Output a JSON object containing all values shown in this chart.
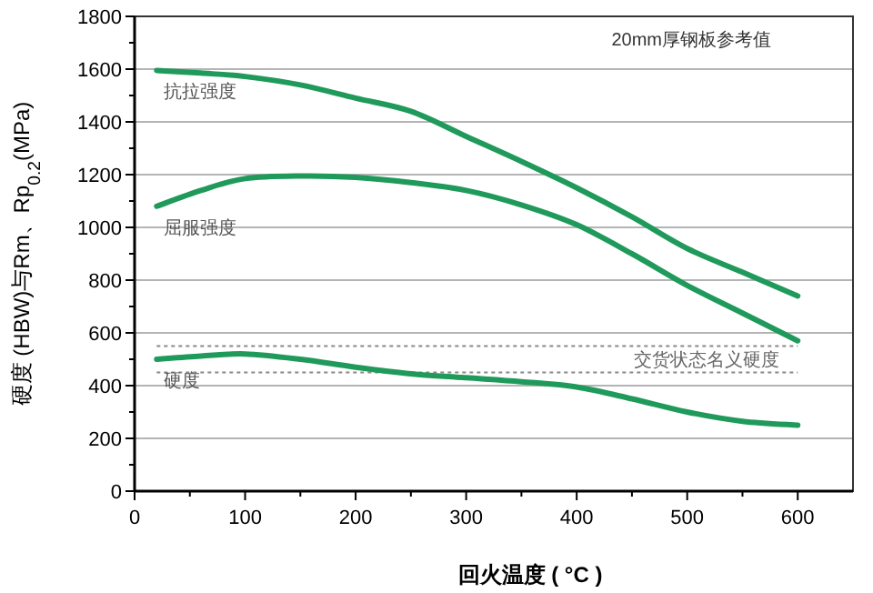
{
  "chart_data": {
    "type": "line",
    "xlabel": "回火温度 ( °C )",
    "ylabel": "硬度 (HBW)与Rm、Rp$_{0.2}$(MPa)",
    "x": [
      20,
      60,
      100,
      150,
      200,
      250,
      300,
      350,
      400,
      450,
      500,
      550,
      600
    ],
    "series": [
      {
        "name": "抗拉强度",
        "color": "#1f9a5b",
        "values": [
          1595,
          1585,
          1572,
          1540,
          1490,
          1440,
          1345,
          1250,
          1150,
          1040,
          920,
          830,
          740
        ]
      },
      {
        "name": "屈服强度",
        "color": "#1f9a5b",
        "values": [
          1080,
          1140,
          1185,
          1195,
          1190,
          1170,
          1140,
          1085,
          1010,
          900,
          780,
          675,
          570
        ]
      },
      {
        "name": "硬度",
        "color": "#1f9a5b",
        "values": [
          500,
          512,
          520,
          500,
          470,
          445,
          430,
          415,
          395,
          350,
          300,
          265,
          250
        ]
      }
    ],
    "xlim": [
      0,
      650
    ],
    "ylim": [
      0,
      1800
    ],
    "xticks": [
      0,
      {
        "value": 50,
        "label": null
      },
      100,
      {
        "value": 150,
        "label": null
      },
      200,
      {
        "value": 250,
        "label": null
      },
      300,
      {
        "value": 350,
        "label": null
      },
      400,
      {
        "value": 450,
        "label": null
      },
      500,
      {
        "value": 550,
        "label": null
      },
      600
    ],
    "yticks": [
      0,
      {
        "value": 100,
        "label": null
      },
      200,
      {
        "value": 300,
        "label": null
      },
      400,
      {
        "value": 500,
        "label": null
      },
      600,
      {
        "value": 700,
        "label": null
      },
      800,
      {
        "value": 900,
        "label": null
      },
      1000,
      {
        "value": 1100,
        "label": null
      },
      1200,
      {
        "value": 1300,
        "label": null
      },
      1400,
      {
        "value": 1500,
        "label": null
      },
      1600,
      {
        "value": 1700,
        "label": null
      },
      1800
    ],
    "grid": "y",
    "line_style": "solid",
    "marker": "none",
    "legend": false,
    "ref_lines": [
      {
        "axis": "y",
        "value": 550,
        "color": "#888888",
        "line_style": "dotted"
      },
      {
        "axis": "y",
        "value": 450,
        "label": "交货状态名义硬度",
        "color": "#888888",
        "line_style": "dotted"
      }
    ],
    "annotations": [
      "20mm厚钢板参考值"
    ]
  }
}
